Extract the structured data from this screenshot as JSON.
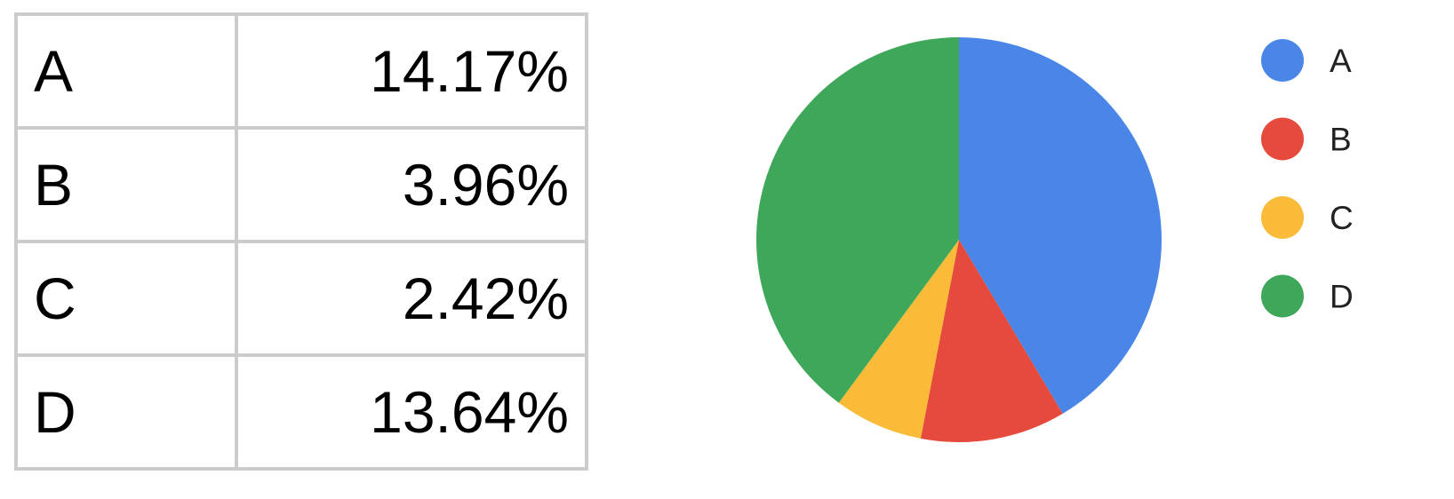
{
  "table": {
    "rows": [
      {
        "label": "A",
        "value": "14.17%"
      },
      {
        "label": "B",
        "value": "3.96%"
      },
      {
        "label": "C",
        "value": "2.42%"
      },
      {
        "label": "D",
        "value": "13.64%"
      }
    ]
  },
  "chart_data": {
    "type": "pie",
    "categories": [
      "A",
      "B",
      "C",
      "D"
    ],
    "values": [
      14.17,
      3.96,
      2.42,
      13.64
    ],
    "colors": [
      "#4a86e8",
      "#e64a3c",
      "#f9bb38",
      "#3ea75a"
    ],
    "legend_position": "right",
    "start_angle": "top, clockwise"
  }
}
